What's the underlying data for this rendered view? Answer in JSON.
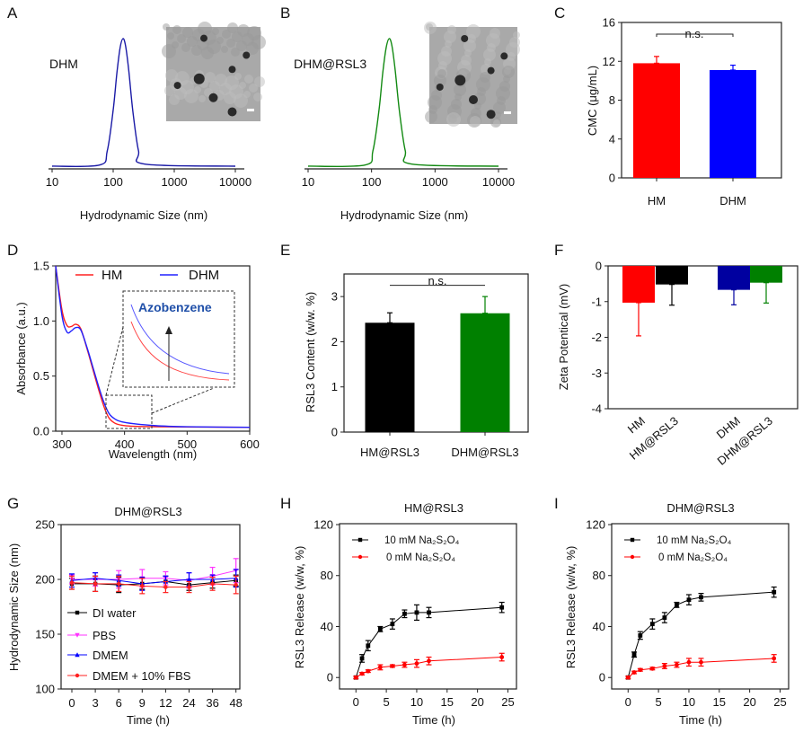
{
  "colors": {
    "red": "#ff0000",
    "blue": "#0000ff",
    "green": "#008000",
    "black": "#000000",
    "navy": "#0000a0",
    "magenta": "#ff33ff"
  },
  "chart_data": [
    {
      "panel": "A",
      "type": "line",
      "annotation": "DHM",
      "xlabel": "Hydrodynamic Size (nm)",
      "xscale": "log",
      "xlim": [
        10,
        10000
      ],
      "xticks": [
        10,
        100,
        1000,
        10000
      ],
      "x": [
        10,
        60,
        80,
        100,
        115,
        130,
        145,
        160,
        180,
        210,
        260,
        330,
        10000
      ],
      "y": [
        0,
        0.009,
        0.12,
        0.44,
        0.73,
        0.93,
        1,
        0.94,
        0.75,
        0.43,
        0.12,
        0.016,
        0
      ],
      "color": "#1a1aa6",
      "inset": "TEM image",
      "grid": false
    },
    {
      "panel": "B",
      "type": "line",
      "annotation": "DHM@RSL3",
      "xlabel": "Hydrodynamic Size (nm)",
      "xscale": "log",
      "xlim": [
        10,
        10000
      ],
      "xticks": [
        10,
        100,
        1000,
        10000
      ],
      "x": [
        10,
        79,
        105,
        131,
        150,
        170,
        190,
        210,
        236,
        275,
        340,
        432,
        10000
      ],
      "y": [
        0,
        0.009,
        0.12,
        0.44,
        0.73,
        0.93,
        1,
        0.94,
        0.75,
        0.43,
        0.12,
        0.016,
        0
      ],
      "color": "#138a13",
      "inset": "TEM image",
      "grid": false
    },
    {
      "panel": "C",
      "type": "bar",
      "ylabel": "CMC (μg/mL)",
      "ylim": [
        0,
        16
      ],
      "yticks": [
        0,
        4,
        8,
        12,
        16
      ],
      "categories": [
        "HM",
        "DHM"
      ],
      "values": [
        11.8,
        11.1
      ],
      "errors": [
        0.7,
        0.5
      ],
      "bar_colors": [
        "#ff0000",
        "#0000ff"
      ],
      "significance": "n.s."
    },
    {
      "panel": "D",
      "type": "line",
      "xlabel": "Wavelength (nm)",
      "ylabel": "Absorbance (a.u.)",
      "xlim": [
        290,
        600
      ],
      "ylim": [
        0,
        1.5
      ],
      "xticks": [
        300,
        400,
        500,
        600
      ],
      "yticks": [
        "0.0",
        "0.5",
        "1.0",
        "1.5"
      ],
      "legend_position": "top",
      "inset_annotation": "Azobenzene",
      "series": [
        {
          "name": "HM",
          "color": "#ff2020",
          "x": [
            290,
            300,
            308,
            315,
            322,
            330,
            340,
            350,
            360,
            370,
            380,
            400,
            450,
            600
          ],
          "y": [
            1.5,
            1.1,
            0.96,
            0.95,
            0.97,
            0.93,
            0.75,
            0.55,
            0.35,
            0.18,
            0.09,
            0.05,
            0.04,
            0.035
          ]
        },
        {
          "name": "DHM",
          "color": "#2020ff",
          "x": [
            290,
            300,
            308,
            315,
            322,
            330,
            340,
            350,
            360,
            370,
            380,
            400,
            450,
            500,
            600
          ],
          "y": [
            1.5,
            1.05,
            0.9,
            0.91,
            0.94,
            0.92,
            0.76,
            0.57,
            0.38,
            0.22,
            0.13,
            0.08,
            0.05,
            0.04,
            0.035
          ]
        }
      ]
    },
    {
      "panel": "E",
      "type": "bar",
      "ylabel": "RSL3 Content (w/w. %)",
      "ylim": [
        0,
        3.5
      ],
      "yticks": [
        0,
        1,
        2,
        3
      ],
      "categories": [
        "HM@RSL3",
        "DHM@RSL3"
      ],
      "values": [
        2.42,
        2.63
      ],
      "errors": [
        0.22,
        0.37
      ],
      "bar_colors": [
        "#000000",
        "#008000"
      ],
      "significance": "n.s."
    },
    {
      "panel": "F",
      "type": "bar",
      "ylabel": "Zeta Potentical (mV)",
      "ylim": [
        -4,
        0
      ],
      "yticks": [
        0,
        -1,
        -2,
        -3,
        -4
      ],
      "categories": [
        "HM",
        "HM@RSL3",
        "DHM",
        "DHM@RSL3"
      ],
      "values": [
        -1.03,
        -0.52,
        -0.67,
        -0.47
      ],
      "errors": [
        0.93,
        0.58,
        0.42,
        0.57
      ],
      "bar_colors": [
        "#ff0000",
        "#000000",
        "#0000a0",
        "#008000"
      ]
    },
    {
      "panel": "G",
      "type": "line",
      "title": "DHM@RSL3",
      "xlabel": "Time (h)",
      "ylabel": "Hydrodynamic Size (nm)",
      "ylim": [
        100,
        250
      ],
      "yticks": [
        100,
        150,
        200,
        250
      ],
      "categories": [
        "0",
        "3",
        "6",
        "9",
        "12",
        "24",
        "36",
        "48"
      ],
      "legend_position": "center-left",
      "series": [
        {
          "name": "DI water",
          "color": "#000000",
          "marker": "square",
          "values": [
            196,
            196,
            195,
            196,
            198,
            195,
            197,
            199
          ],
          "errors": [
            5,
            7,
            7,
            5,
            5,
            5,
            5,
            5
          ]
        },
        {
          "name": "PBS",
          "color": "#ff33ff",
          "marker": "triangle-down",
          "values": [
            200,
            200,
            200,
            201,
            201,
            199,
            203,
            208
          ],
          "errors": [
            4,
            6,
            8,
            8,
            6,
            7,
            8,
            11
          ]
        },
        {
          "name": "DMEM",
          "color": "#0000ff",
          "marker": "triangle-up",
          "values": [
            199,
            201,
            199,
            196,
            198,
            200,
            200,
            201
          ],
          "errors": [
            6,
            5,
            5,
            6,
            5,
            6,
            4,
            8
          ]
        },
        {
          "name": "DMEM + 10% FBS",
          "color": "#ff2020",
          "marker": "circle",
          "values": [
            197,
            196,
            196,
            194,
            193,
            193,
            196,
            195
          ],
          "errors": [
            6,
            7,
            7,
            7,
            5,
            5,
            6,
            8
          ]
        }
      ]
    },
    {
      "panel": "H",
      "type": "line",
      "title": "HM@RSL3",
      "xlabel": "Time (h)",
      "ylabel": "RSL3 Release (w/w, %)",
      "xlim": [
        -2.7,
        27
      ],
      "ylim": [
        -9,
        120
      ],
      "xticks": [
        0,
        5,
        10,
        15,
        20,
        25
      ],
      "yticks": [
        0,
        40,
        80,
        120
      ],
      "legend_position": "top-left",
      "series": [
        {
          "name": "10 mM Na₂S₂O₄",
          "color": "#000000",
          "marker": "square",
          "x": [
            0,
            1,
            2,
            4,
            6,
            8,
            10,
            12,
            24
          ],
          "y": [
            0,
            15,
            25,
            38,
            42,
            50,
            51,
            51,
            55
          ],
          "errors": [
            0,
            3,
            4,
            2,
            4,
            3,
            6,
            4,
            4
          ]
        },
        {
          "name": "0 mM Na₂S₂O₄",
          "color": "#ff0000",
          "marker": "circle",
          "x": [
            0,
            1,
            2,
            4,
            6,
            8,
            10,
            12,
            24
          ],
          "y": [
            0,
            3,
            5,
            8,
            9,
            10,
            11,
            13,
            16
          ],
          "errors": [
            1,
            1,
            1,
            2,
            1,
            2,
            3,
            3,
            3
          ]
        }
      ]
    },
    {
      "panel": "I",
      "type": "line",
      "title": "DHM@RSL3",
      "xlabel": "Time (h)",
      "ylabel": "RSL3 Release (w/w, %)",
      "xlim": [
        -2.7,
        27
      ],
      "ylim": [
        -9,
        120
      ],
      "xticks": [
        0,
        5,
        10,
        15,
        20,
        25
      ],
      "yticks": [
        0,
        40,
        80,
        120
      ],
      "legend_position": "top-left",
      "series": [
        {
          "name": "10 mM Na₂S₂O₄",
          "color": "#000000",
          "marker": "square",
          "x": [
            0,
            1,
            2,
            4,
            6,
            8,
            10,
            12,
            24
          ],
          "y": [
            0,
            18,
            33,
            42,
            47,
            57,
            61,
            63,
            67
          ],
          "errors": [
            0,
            2,
            3,
            4,
            4,
            2,
            4,
            3,
            4
          ]
        },
        {
          "name": "0 mM Na₂S₂O₄",
          "color": "#ff0000",
          "marker": "circle",
          "x": [
            0,
            1,
            2,
            4,
            6,
            8,
            10,
            12,
            24
          ],
          "y": [
            0,
            4,
            6,
            7,
            9,
            10,
            12,
            12,
            15
          ],
          "errors": [
            1,
            1,
            1,
            1,
            2,
            2,
            3,
            3,
            3
          ]
        }
      ]
    }
  ]
}
